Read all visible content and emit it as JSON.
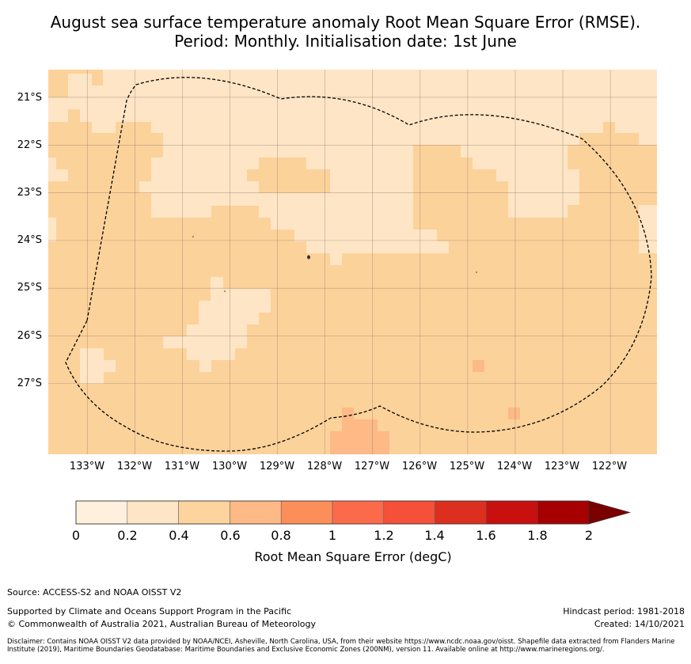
{
  "title": {
    "line1": "August sea surface temperature anomaly Root Mean Square Error (RMSE).",
    "line2": "Period: Monthly. Initialisation date: 1st June"
  },
  "map": {
    "lat_labels": [
      "21°S",
      "22°S",
      "23°S",
      "24°S",
      "25°S",
      "26°S",
      "27°S"
    ],
    "lat_values": [
      -21,
      -22,
      -23,
      -24,
      -25,
      -26,
      -27
    ],
    "lon_labels": [
      "133°W",
      "132°W",
      "131°W",
      "130°W",
      "129°W",
      "128°W",
      "127°W",
      "126°W",
      "125°W",
      "124°W",
      "123°W",
      "122°W"
    ],
    "lon_values": [
      -133,
      -132,
      -131,
      -130,
      -129,
      -128,
      -127,
      -126,
      -125,
      -124,
      -123,
      -122
    ],
    "lon_range": [
      -133.82,
      -121.02
    ],
    "lat_range": [
      -28.48,
      -20.42
    ],
    "background_band_color": "#fcd29b",
    "grid_color": "#8a7a6a",
    "eez_boundary_style": "dashed"
  },
  "colorbar": {
    "ticks": [
      "0",
      "0.2",
      "0.4",
      "0.6",
      "0.8",
      "1",
      "1.2",
      "1.4",
      "1.6",
      "1.8",
      "2"
    ],
    "colors": [
      "#fff0de",
      "#fee5c5",
      "#fdd49e",
      "#fdb986",
      "#fc8e5a",
      "#fb6b4b",
      "#f4503a",
      "#dc2f20",
      "#c8100f",
      "#a60000"
    ],
    "extend_color": "#7a0000",
    "label": "Root Mean Square Error (degC)"
  },
  "footer": {
    "source": "Source: ACCESS-S2 and NOAA OISST V2",
    "support": "Supported by Climate and Oceans Support Program in the Pacific",
    "copyright": "© Commonwealth of Australia 2021, Australian Bureau of Meteorology",
    "hindcast": "Hindcast period: 1981-2018",
    "created": "Created: 14/10/2021",
    "disclaimer": "Disclaimer: Contains NOAA OISST V2 data provided by NOAA/NCEI, Asheville, North Carolina, USA, from their website https://www.ncdc.noaa.gov/oisst. Shapefile data extracted from Flanders Marine Institute (2019), Maritime Boundaries Geodatabase: Maritime Boundaries and Exclusive Economic Zones (200NM), version 11. Available online at http://www.marineregions.org/."
  }
}
